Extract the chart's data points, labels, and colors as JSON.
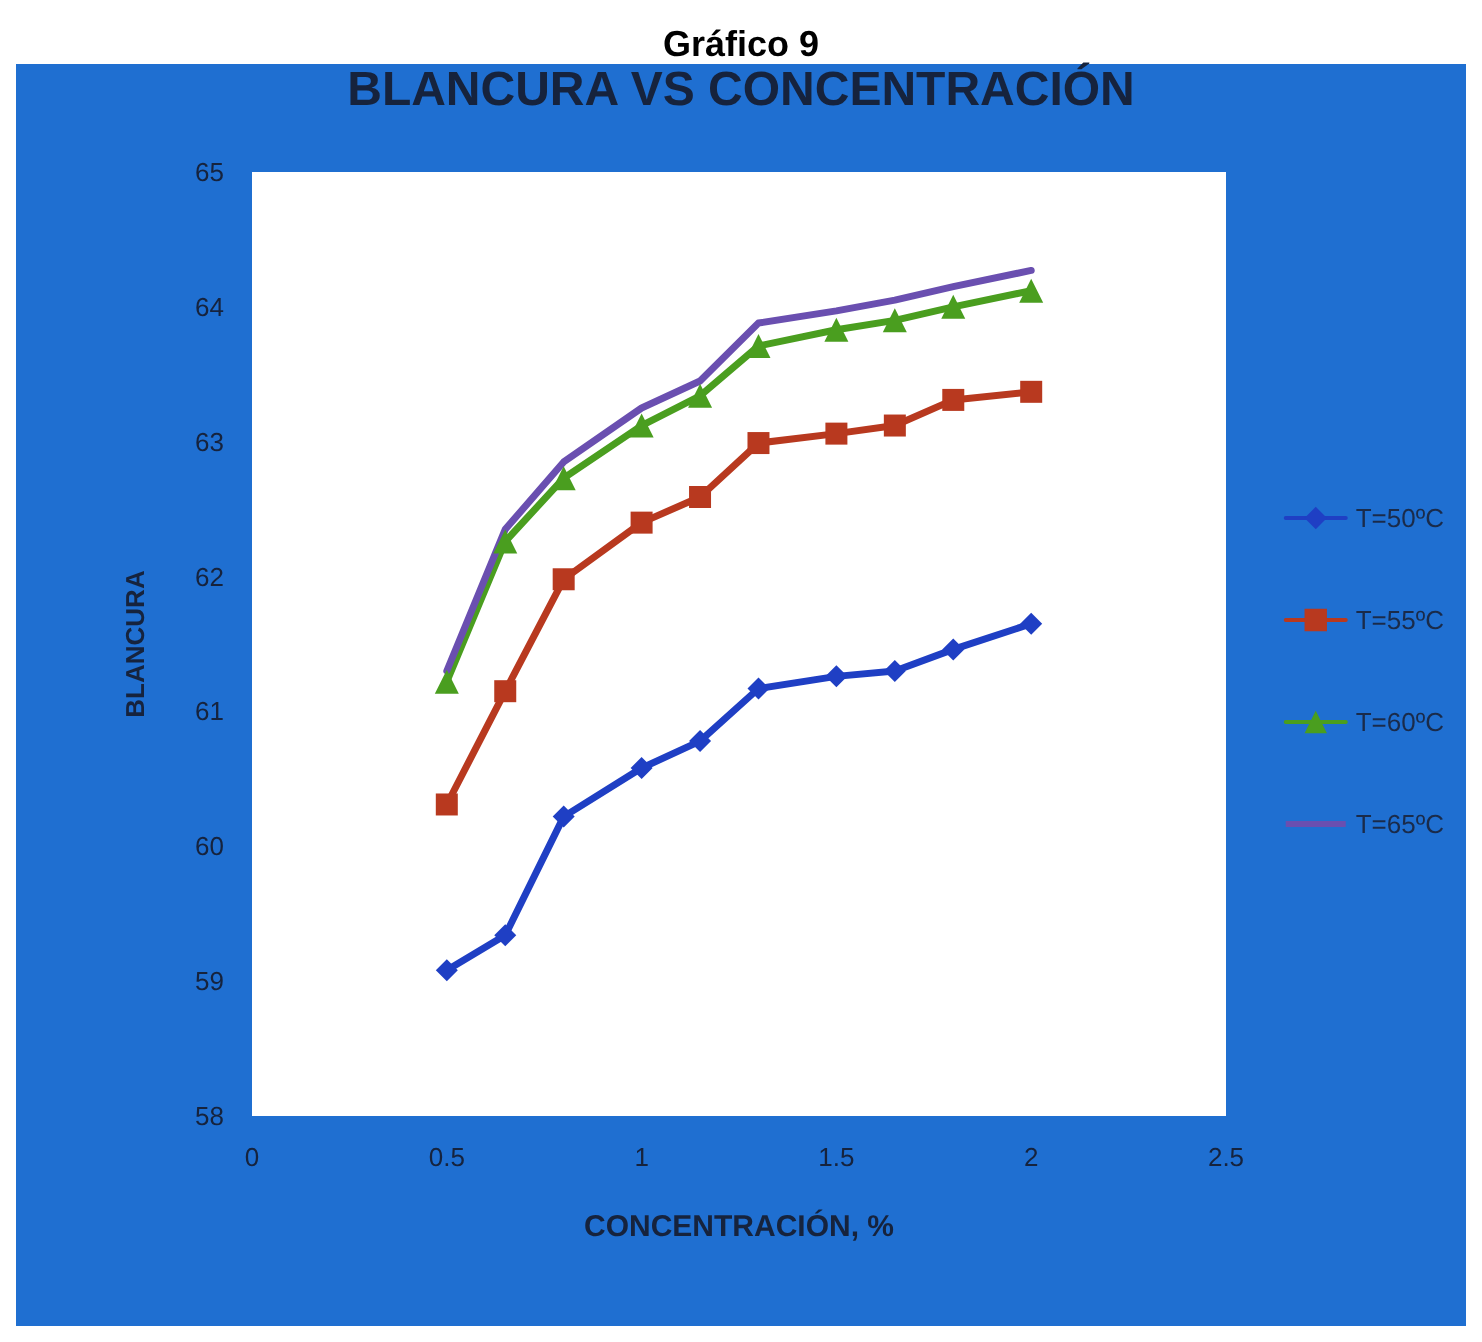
{
  "chart_data": {
    "type": "line",
    "title": "BLANCURA VS CONCENTRACIÓN",
    "xlabel": "CONCENTRACIÓN, %",
    "ylabel": "BLANCURA",
    "annotations": [
      "Gráfico 9"
    ],
    "x": [
      0.5,
      0.65,
      0.8,
      1,
      1.15,
      1.3,
      1.5,
      1.65,
      1.8,
      2
    ],
    "series": [
      {
        "name": "T=50ºC",
        "color": "#1f3fc4",
        "marker": "diamond",
        "values": [
          59.08,
          59.34,
          60.22,
          60.58,
          60.78,
          61.17,
          61.26,
          61.3,
          61.46,
          61.65
        ]
      },
      {
        "name": "T=55ºC",
        "color": "#b8391f",
        "marker": "square",
        "values": [
          60.31,
          61.15,
          61.98,
          62.4,
          62.59,
          62.99,
          63.06,
          63.12,
          63.31,
          63.37
        ]
      },
      {
        "name": "T=60ºC",
        "color": "#4a9e1f",
        "marker": "triangle",
        "values": [
          61.22,
          62.26,
          62.73,
          63.12,
          63.34,
          63.71,
          63.83,
          63.9,
          64.0,
          64.12
        ]
      },
      {
        "name": "T=65ºC",
        "color": "#6a4fb0",
        "marker": "none",
        "values": [
          61.3,
          62.35,
          62.85,
          63.25,
          63.45,
          63.88,
          63.97,
          64.05,
          64.15,
          64.27
        ]
      }
    ],
    "xlim": [
      0,
      2.5
    ],
    "xticks": [
      0,
      0.5,
      1,
      1.5,
      2,
      2.5
    ],
    "ylim": [
      58,
      65
    ],
    "yticks": [
      58,
      59,
      60,
      61,
      62,
      63,
      64,
      65
    ],
    "grid": false,
    "legend": "right",
    "line_style": "solid"
  }
}
